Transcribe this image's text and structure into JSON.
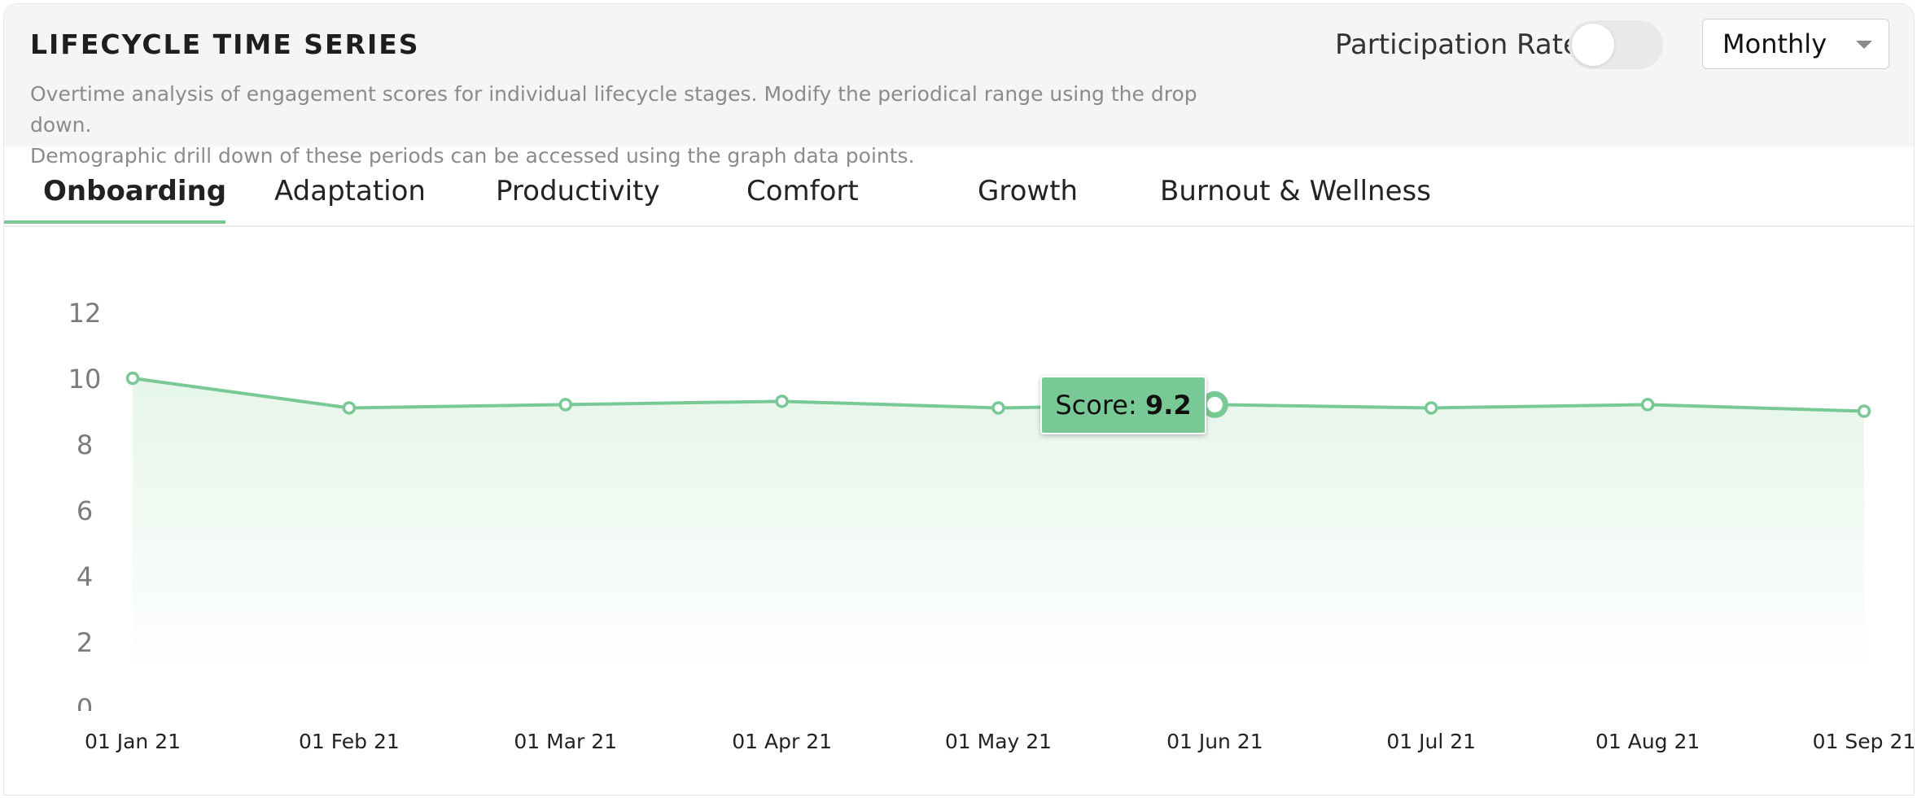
{
  "header": {
    "title": "LIFECYCLE TIME SERIES",
    "description_line1": "Overtime analysis of engagement scores for individual lifecycle stages. Modify the periodical range using the drop down.",
    "description_line2": "Demographic drill down of these periods can be accessed using the graph data points.",
    "participation_label": "Participation Rate",
    "participation_on": false,
    "period_select": "Monthly"
  },
  "tabs": [
    {
      "label": "Onboarding",
      "active": true
    },
    {
      "label": "Adaptation",
      "active": false
    },
    {
      "label": "Productivity",
      "active": false
    },
    {
      "label": "Comfort",
      "active": false
    },
    {
      "label": "Growth",
      "active": false
    },
    {
      "label": "Burnout & Wellness",
      "active": false
    }
  ],
  "tooltip": {
    "label": "Score:",
    "value": "9.2"
  },
  "colors": {
    "line": "#79c996",
    "area_top": "#e6f5ea",
    "axis_text": "#7b7b7b"
  },
  "chart_data": {
    "type": "area",
    "x": [
      "01 Jan 21",
      "01 Feb 21",
      "01 Mar 21",
      "01 Apr 21",
      "01 May 21",
      "01 Jun 21",
      "01 Jul 21",
      "01 Aug 21",
      "01 Sep 21"
    ],
    "series": [
      {
        "values": [
          10.0,
          9.1,
          9.2,
          9.3,
          9.1,
          9.2,
          9.1,
          9.2,
          9.0
        ]
      }
    ],
    "highlighted_index": 5,
    "yticks": [
      0,
      2,
      4,
      6,
      8,
      10,
      12
    ],
    "ylim": [
      0,
      12
    ],
    "grid": false,
    "title": "",
    "xlabel": "",
    "ylabel": ""
  }
}
